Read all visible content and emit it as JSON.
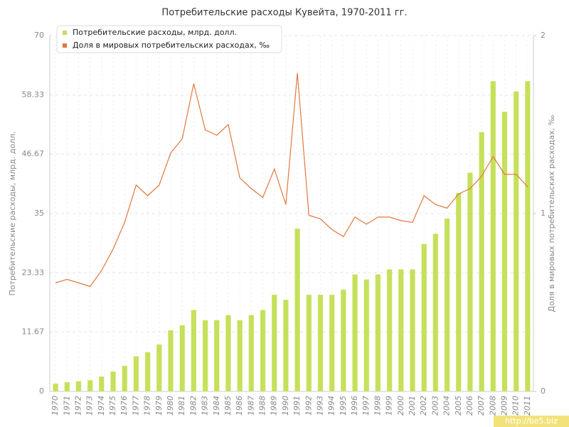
{
  "chart_data": {
    "type": "bar-line",
    "title": "Потребительские расходы Кувейта, 1970-2011 гг.",
    "y_label": "Потребительские расходы, млрд. долл.",
    "y2_label": "Доля в мировых потребительских расходах, ‰",
    "watermark": "http://be5.biz",
    "categories": [
      "1970",
      "1971",
      "1972",
      "1973",
      "1974",
      "1975",
      "1976",
      "1977",
      "1978",
      "1979",
      "1980",
      "1981",
      "1982",
      "1983",
      "1984",
      "1985",
      "1986",
      "1987",
      "1988",
      "1989",
      "1990",
      "1991",
      "1992",
      "1993",
      "1994",
      "1995",
      "1996",
      "1997",
      "1998",
      "1999",
      "2000",
      "2001",
      "2002",
      "2003",
      "2004",
      "2005",
      "2006",
      "2007",
      "2008",
      "2009",
      "2010",
      "2011"
    ],
    "series": [
      {
        "name": "Потребительские расходы, млрд. долл.",
        "color": "#c5e05a",
        "type": "bar",
        "values": [
          1.5,
          1.8,
          2.0,
          2.2,
          2.9,
          3.9,
          5.0,
          6.9,
          7.7,
          9.2,
          12.0,
          13.0,
          16.0,
          14.0,
          14.0,
          15.0,
          14.0,
          15.0,
          16.0,
          19.0,
          18.0,
          32.0,
          19.0,
          19.0,
          19.0,
          20.0,
          23.0,
          22.0,
          23.0,
          24.0,
          24.0,
          24.0,
          29.0,
          31.0,
          34.0,
          39.0,
          43.0,
          51.0,
          61.0,
          55.0,
          59.0,
          61.0
        ]
      },
      {
        "name": "Доля в мировых потребительских расходах, ‰",
        "color": "#e07840",
        "type": "line",
        "axis": "y2",
        "values": [
          0.61,
          0.63,
          0.61,
          0.59,
          0.68,
          0.8,
          0.95,
          1.16,
          1.1,
          1.16,
          1.34,
          1.42,
          1.73,
          1.47,
          1.44,
          1.5,
          1.2,
          1.14,
          1.09,
          1.25,
          1.05,
          1.79,
          0.99,
          0.97,
          0.91,
          0.87,
          0.98,
          0.94,
          0.98,
          0.98,
          0.96,
          0.95,
          1.1,
          1.05,
          1.03,
          1.11,
          1.14,
          1.21,
          1.32,
          1.22,
          1.22,
          1.15
        ]
      }
    ],
    "ylim": [
      0,
      70
    ],
    "yticks": [
      0,
      11.67,
      23.33,
      35,
      46.67,
      58.33,
      70
    ],
    "y2lim": [
      0,
      2
    ],
    "y2ticks": [
      0,
      1,
      2
    ],
    "grid": true,
    "legend": "top-left"
  }
}
